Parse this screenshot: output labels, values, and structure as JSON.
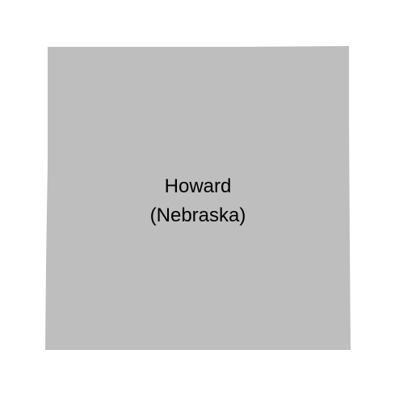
{
  "map": {
    "region": {
      "name": "Howard",
      "state": "(Nebraska)",
      "fill_color": "#bebebe"
    },
    "background_color": "#ffffff",
    "label_color": "#000000"
  }
}
